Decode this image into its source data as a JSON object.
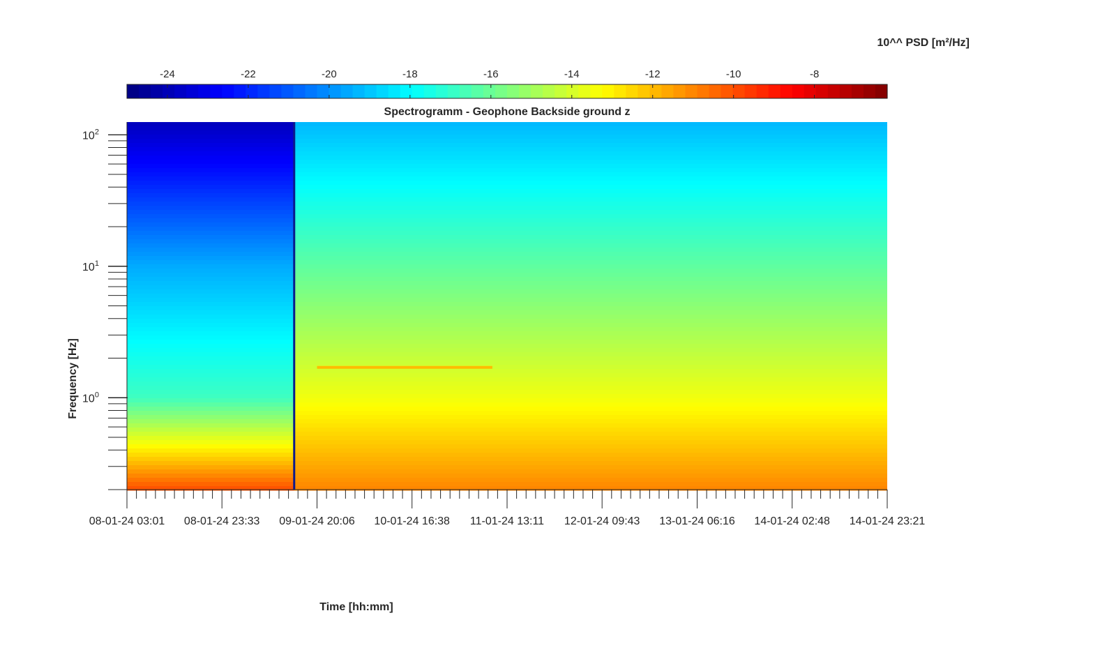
{
  "chart_data": {
    "type": "heatmap",
    "title": "Spectrogramm - Geophone Backside ground z",
    "xlabel": "Time [hh:mm]",
    "ylabel": "Frequency [Hz]",
    "colorbar_label": "10^^ PSD [m²/Hz]",
    "colorbar_ticks": [
      -24,
      -22,
      -20,
      -18,
      -16,
      -14,
      -12,
      -10,
      -8
    ],
    "colorbar_range": [
      -25,
      -6.2
    ],
    "colormap": "jet",
    "x_tick_labels": [
      "08-01-24 03:01",
      "08-01-24 23:33",
      "09-01-24 20:06",
      "10-01-24 16:38",
      "11-01-24 13:11",
      "12-01-24 09:43",
      "13-01-24 06:16",
      "14-01-24 02:48",
      "14-01-24 23:21"
    ],
    "y_scale": "log",
    "y_tick_labels": [
      {
        "base": "10",
        "exp": "0"
      },
      {
        "base": "10",
        "exp": "1"
      },
      {
        "base": "10",
        "exp": "2"
      }
    ],
    "ylim": [
      0.2,
      125
    ],
    "xlim": [
      "08-01-24 03:01",
      "14-01-24 23:21"
    ],
    "data_gap_end": "09-01-24 15:10",
    "segments": [
      {
        "start": "08-01-24 03:01",
        "end": "09-01-24 15:10",
        "psd_at_0_2hz": -10,
        "psd_at_1hz": -16.8,
        "psd_at_10hz": -19.5,
        "psd_at_100hz": -23.5
      },
      {
        "start": "09-01-24 15:10",
        "end": "14-01-24 23:21",
        "psd_at_0_2hz": -11,
        "psd_at_1hz": -13.5,
        "psd_at_10hz": -16.2,
        "psd_at_100hz": -19
      }
    ],
    "tonal_line": {
      "freq_hz": 1.7,
      "start": "09-01-24 20:06",
      "end": "11-01-24 10:00",
      "psd": -12
    }
  }
}
